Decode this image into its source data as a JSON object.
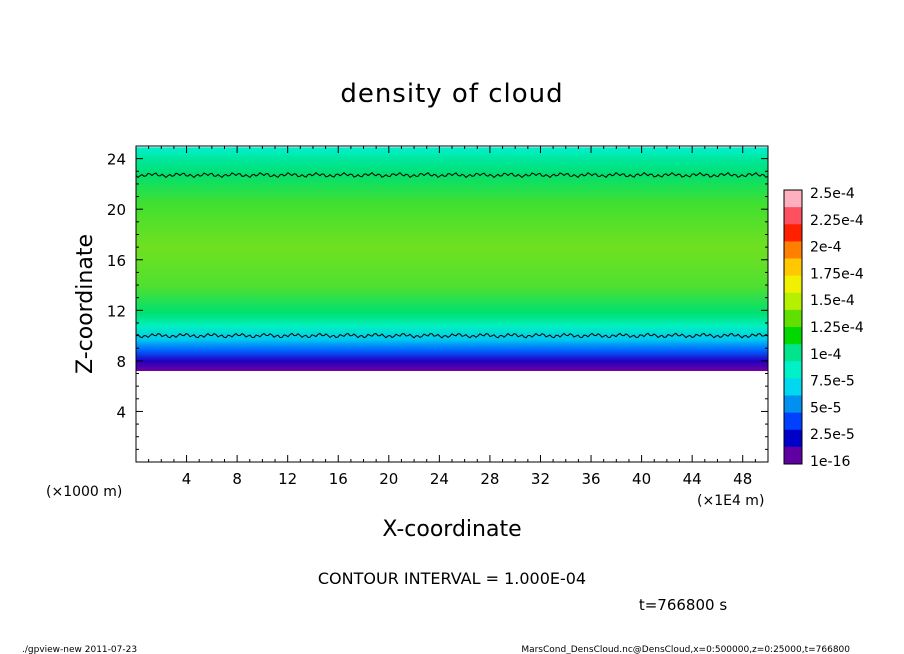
{
  "chart_data": {
    "type": "heatmap",
    "title": "density of cloud",
    "xlabel": "X-coordinate",
    "ylabel": "Z-coordinate",
    "x_unit_note": "(×1E4 m)",
    "z_unit_note": "(×1000 m)",
    "xlim": [
      0,
      50
    ],
    "ylim": [
      0,
      25
    ],
    "x_ticks": [
      4,
      8,
      12,
      16,
      20,
      24,
      28,
      32,
      36,
      40,
      44,
      48
    ],
    "y_ticks": [
      4,
      8,
      12,
      16,
      20,
      24
    ],
    "colorbar": {
      "labels": [
        "2.5e-4",
        "2.25e-4",
        "2e-4",
        "1.75e-4",
        "1.5e-4",
        "1.25e-4",
        "1e-4",
        "7.5e-5",
        "5e-5",
        "2.5e-5",
        "1e-16"
      ],
      "colors": [
        "#ffb0c0",
        "#ff5060",
        "#ff2000",
        "#ff8000",
        "#ffc800",
        "#f0f000",
        "#b4f000",
        "#60e000",
        "#00d800",
        "#00e48c",
        "#00f0c8",
        "#00d8f0",
        "#0090f0",
        "#0040ff",
        "#0000c8",
        "#6000a0"
      ]
    },
    "cloud_band": {
      "z_bottom": 7.2,
      "z_top": 24.9
    },
    "contour_levels_z": [
      10,
      22.7
    ],
    "contour_interval": "CONTOUR INTERVAL = 1.000E-04",
    "time": "t=766800 s"
  },
  "footer": {
    "left": "./gpview-new  2011-07-23",
    "right": "MarsCond_DensCloud.nc@DensCloud,x=0:500000,z=0:25000,t=766800"
  }
}
